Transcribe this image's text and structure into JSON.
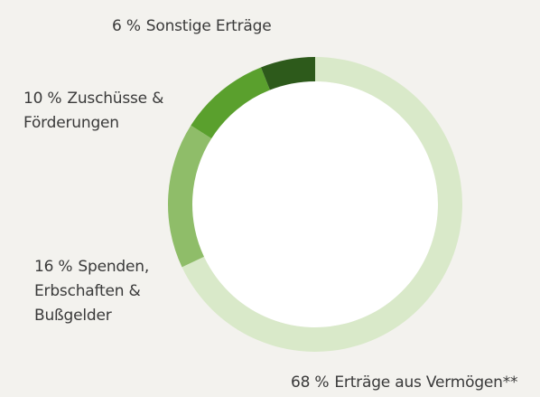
{
  "chart_data": {
    "type": "donut",
    "categories": [
      "Erträge aus Vermögen**",
      "Spenden, Erbschaften & Bußgelder",
      "Zuschüsse & Förderungen",
      "Sonstige Erträge"
    ],
    "values": [
      68,
      16,
      10,
      6
    ],
    "value_labels": [
      "68 %",
      "16 %",
      "10 %",
      "6 %"
    ],
    "colors": [
      "#d9e9c9",
      "#8fbd69",
      "#5aa02d",
      "#2d5a1b"
    ]
  }
}
